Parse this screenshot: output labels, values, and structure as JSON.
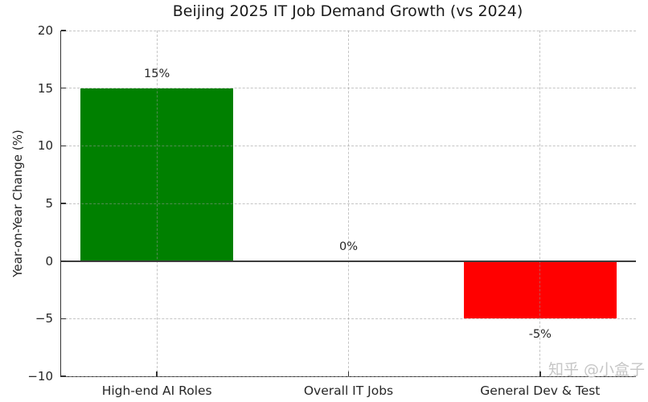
{
  "chart_data": {
    "type": "bar",
    "title": "Beijing 2025 IT Job Demand Growth (vs 2024)",
    "categories": [
      "High-end AI Roles",
      "Overall IT Jobs",
      "General Dev & Test"
    ],
    "values": [
      15,
      0,
      -5
    ],
    "value_labels": [
      "15%",
      "0%",
      "-5%"
    ],
    "bar_colors": [
      "#008000",
      null,
      "#ff0000"
    ],
    "xlabel": "",
    "ylabel": "Year-on-Year Change (%)",
    "ylim": [
      -10,
      20
    ],
    "yticks": [
      20,
      15,
      10,
      5,
      0,
      -5,
      -10
    ],
    "ytick_labels": [
      "20",
      "15",
      "10",
      "5",
      "0",
      "−5",
      "−10"
    ],
    "grid": true,
    "grid_style": "dashed",
    "legend": false,
    "axis_color": "#333333",
    "grid_color": "#cccccc",
    "zero_line_color": "#3d3d3d"
  },
  "watermark": {
    "text": "知乎 @小盒子",
    "color": "#c6c6c6"
  }
}
